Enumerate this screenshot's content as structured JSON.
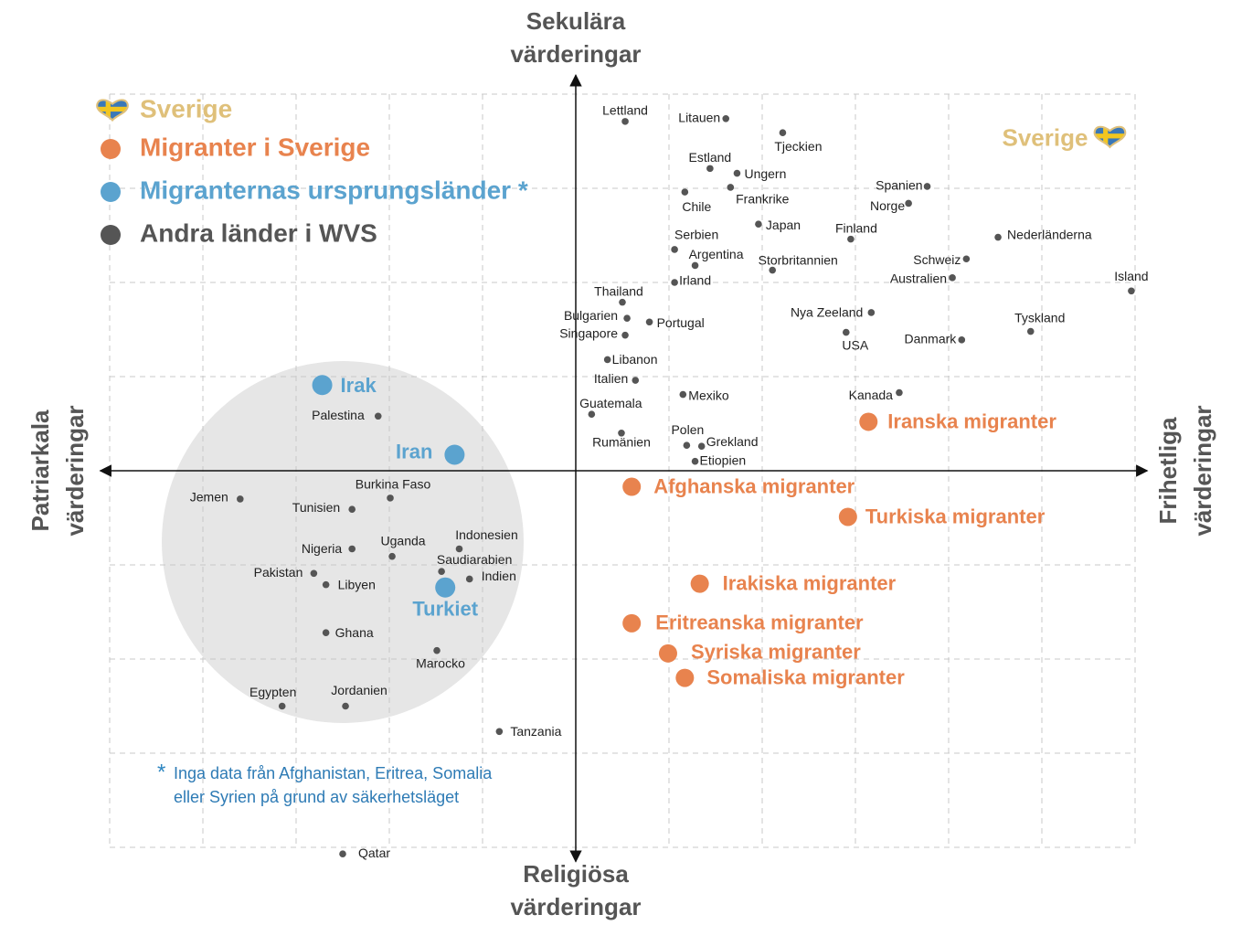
{
  "chart_data": {
    "type": "scatter",
    "axis_labels": {
      "top": [
        "Sekulära",
        "värderingar"
      ],
      "bottom": [
        "Religiösa",
        "värderingar"
      ],
      "left": [
        "Patriarkala",
        "värderingar"
      ],
      "right": [
        "Frihetliga",
        "värderingar"
      ]
    },
    "xlim": [
      -5.1,
      6.1
    ],
    "ylim": [
      -4.15,
      4.2
    ],
    "xticks": [
      -5,
      -4,
      -3,
      -2,
      -1,
      0,
      1,
      2,
      3,
      4,
      5,
      6
    ],
    "yticks": [
      -4,
      -3,
      -2,
      -1,
      0,
      1,
      2,
      3,
      4
    ],
    "grid": true,
    "series": [
      {
        "name": "Sverige",
        "color": "#dfc07a",
        "marker": "heart",
        "labels": [
          "Sverige"
        ],
        "x": [
          5.73
        ],
        "y": [
          3.54
        ]
      },
      {
        "name": "Migranter i Sverige",
        "color": "#e8834e",
        "marker": "dot",
        "labels": [
          "Iranska migranter",
          "Afghanska migranter",
          "Turkiska migranter",
          "Irakiska migranter",
          "Eritreanska migranter",
          "Syriska migranter",
          "Somaliska migranter"
        ],
        "x": [
          3.14,
          0.6,
          2.92,
          1.33,
          0.6,
          0.99,
          1.17
        ],
        "y": [
          0.52,
          -0.17,
          -0.49,
          -1.2,
          -1.62,
          -1.94,
          -2.2
        ]
      },
      {
        "name": "Migranternas ursprungsländer *",
        "color": "#5ba3cf",
        "marker": "dot",
        "labels": [
          "Irak",
          "Iran",
          "Turkiet"
        ],
        "x": [
          -2.72,
          -1.3,
          -1.4
        ],
        "y": [
          0.91,
          0.17,
          -1.24
        ]
      },
      {
        "name": "Andra länder i WVS",
        "color": "#555555",
        "marker": "dot",
        "labels": [
          "Lettland",
          "Litauen",
          "Tjeckien",
          "Estland",
          "Ungern",
          "Frankrike",
          "Chile",
          "Spanien",
          "Norge",
          "Japan",
          "Finland",
          "Nederländerna",
          "Serbien",
          "Argentina",
          "Storbritannien",
          "Schweiz",
          "Australien",
          "Island",
          "Irland",
          "Thailand",
          "Bulgarien",
          "Portugal",
          "Singapore",
          "Nya Zeeland",
          "USA",
          "Tyskland",
          "Danmark",
          "Libanon",
          "Italien",
          "Mexiko",
          "Kanada",
          "Guatemala",
          "Rumänien",
          "Polen",
          "Grekland",
          "Etiopien",
          "Palestina",
          "Jemen",
          "Tunisien",
          "Burkina Faso",
          "Nigeria",
          "Uganda",
          "Indonesien",
          "Saudiarabien",
          "Indien",
          "Pakistan",
          "Libyen",
          "Ghana",
          "Marocko",
          "Egypten",
          "Jordanien",
          "Tanzania",
          "Qatar"
        ],
        "x": [
          0.53,
          1.61,
          2.22,
          1.44,
          1.73,
          1.66,
          1.17,
          3.77,
          3.57,
          1.96,
          2.95,
          4.53,
          1.06,
          1.28,
          2.11,
          4.19,
          4.04,
          5.96,
          1.06,
          0.5,
          0.55,
          0.79,
          0.53,
          3.17,
          2.9,
          4.88,
          4.14,
          0.34,
          0.64,
          1.15,
          3.47,
          0.17,
          0.49,
          1.19,
          1.35,
          1.28,
          -2.12,
          -3.6,
          -2.4,
          -1.99,
          -2.4,
          -1.97,
          -1.25,
          -1.44,
          -1.14,
          -2.81,
          -2.68,
          -2.68,
          -1.49,
          -3.15,
          -2.47,
          -0.82,
          -2.5
        ],
        "y": [
          3.71,
          3.74,
          3.59,
          3.21,
          3.16,
          3.01,
          2.96,
          3.02,
          2.84,
          2.62,
          2.46,
          2.48,
          2.35,
          2.18,
          2.13,
          2.25,
          2.05,
          1.91,
          2.0,
          1.79,
          1.62,
          1.58,
          1.44,
          1.68,
          1.47,
          1.48,
          1.39,
          1.18,
          0.96,
          0.81,
          0.83,
          0.6,
          0.4,
          0.27,
          0.26,
          0.1,
          0.58,
          -0.3,
          -0.41,
          -0.29,
          -0.83,
          -0.91,
          -0.83,
          -1.07,
          -1.15,
          -1.09,
          -1.21,
          -1.72,
          -1.91,
          -2.5,
          -2.5,
          -2.77,
          -4.07
        ]
      }
    ],
    "note": {
      "marker": "*",
      "lines": [
        "Inga data från Afghanistan, Eritrea, Somalia",
        "eller Syrien på grund av säkerhetsläget"
      ]
    }
  }
}
